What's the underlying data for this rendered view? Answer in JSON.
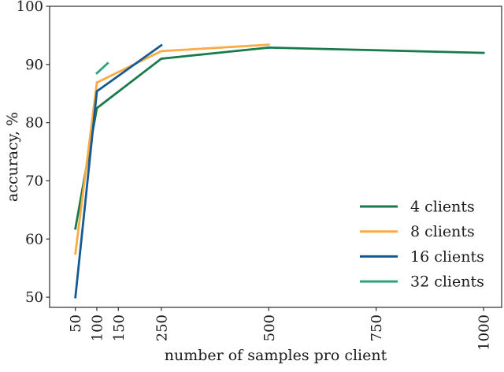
{
  "figure": {
    "background": "#ffffff",
    "text_color": "#1a1a1a",
    "spine_color": "#2b2b2b"
  },
  "chart_data": {
    "type": "line",
    "title": "",
    "xlabel": "number of samples pro client",
    "ylabel": "accuracy, %",
    "xlim": [
      -10,
      1042
    ],
    "ylim": [
      48.25,
      100
    ],
    "x_ticks": [
      50,
      100,
      150,
      250,
      500,
      750,
      1000
    ],
    "y_ticks": [
      50,
      60,
      70,
      80,
      90,
      100
    ],
    "x_tick_rotation": 90,
    "grid": false,
    "legend_position": "lower right",
    "legend_frame": false,
    "series": [
      {
        "name": "4 clients",
        "color": "#177a4b",
        "x": [
          50,
          100,
          250,
          500,
          1000
        ],
        "y": [
          61.8,
          82.5,
          91.0,
          92.9,
          92.0
        ]
      },
      {
        "name": "8 clients",
        "color": "#fbab45",
        "x": [
          50,
          100,
          250,
          500
        ],
        "y": [
          57.5,
          86.9,
          92.3,
          93.4
        ]
      },
      {
        "name": "16 clients",
        "color": "#165a94",
        "x": [
          50,
          100,
          250
        ],
        "y": [
          50.0,
          85.4,
          93.3
        ]
      },
      {
        "name": "32 clients",
        "color": "#2ba577",
        "x": [
          100,
          125
        ],
        "y": [
          88.5,
          90.2
        ]
      }
    ]
  }
}
